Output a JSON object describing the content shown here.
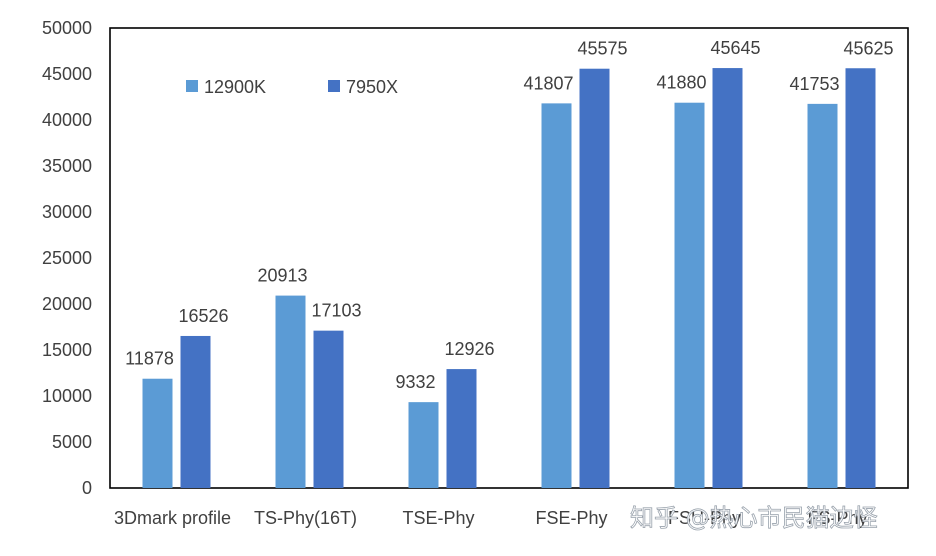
{
  "chart_data": {
    "type": "bar",
    "categories": [
      "3Dmark profile",
      "TS-Phy(16T)",
      "TSE-Phy",
      "FSE-Phy",
      "FSU-Phy",
      "FS-Phy"
    ],
    "series": [
      {
        "name": "12900K",
        "values": [
          11878,
          20913,
          9332,
          41807,
          41880,
          41753
        ],
        "color": "#5b9bd5"
      },
      {
        "name": "7950X",
        "values": [
          16526,
          17103,
          12926,
          45575,
          45645,
          45625
        ],
        "color": "#4472c4"
      }
    ],
    "ylim": [
      0,
      50000
    ],
    "yticks": [
      0,
      5000,
      10000,
      15000,
      20000,
      25000,
      30000,
      35000,
      40000,
      45000,
      50000
    ],
    "grid": false,
    "legend_position": "top-left",
    "data_labels": true
  },
  "watermark": "知乎 @热心市民猫边怪"
}
